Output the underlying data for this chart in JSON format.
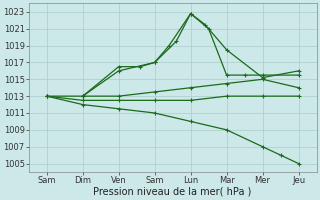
{
  "background_color": "#cce8e8",
  "grid_color": "#aacccc",
  "line_color": "#1a6b1a",
  "marker_color": "#1a6b1a",
  "xlabel": "Pression niveau de la mer( hPa )",
  "ylim": [
    1004,
    1024
  ],
  "yticks": [
    1005,
    1007,
    1009,
    1011,
    1013,
    1015,
    1017,
    1019,
    1021,
    1023
  ],
  "x_labels": [
    "Sam",
    "Dim",
    "Ven",
    "Sam",
    "Lun",
    "Mar",
    "Mer",
    "Jeu"
  ],
  "x_positions": [
    0,
    1,
    2,
    3,
    4,
    5,
    6,
    7
  ],
  "series_high_x": [
    1,
    2,
    3,
    3.6,
    4,
    4.4,
    5,
    6,
    7
  ],
  "series_high_y": [
    1013,
    1016,
    1017,
    1019.5,
    1022.8,
    1021.5,
    1018.5,
    1015.2,
    1016
  ],
  "series_mid_x": [
    1,
    2,
    2.6,
    3,
    3.4,
    4,
    4.5,
    5,
    5.5,
    6,
    7
  ],
  "series_mid_y": [
    1013,
    1016.5,
    1016.5,
    1017,
    1019,
    1022.8,
    1021,
    1015.5,
    1015.5,
    1015.5,
    1015.5
  ],
  "series_upper_x": [
    0,
    1,
    2,
    3,
    4,
    5,
    6,
    7
  ],
  "series_upper_y": [
    1013,
    1013,
    1013,
    1013.5,
    1014,
    1014.5,
    1015,
    1014
  ],
  "series_lower_x": [
    0,
    1,
    2,
    3,
    4,
    5,
    6,
    7
  ],
  "series_lower_y": [
    1013,
    1012.5,
    1012.5,
    1012.5,
    1012.5,
    1013,
    1013,
    1013
  ],
  "series_bot_x": [
    0,
    1,
    2,
    3,
    4,
    5,
    6,
    6.5,
    7
  ],
  "series_bot_y": [
    1013,
    1012,
    1011.5,
    1011,
    1010,
    1009,
    1007,
    1006,
    1005
  ]
}
